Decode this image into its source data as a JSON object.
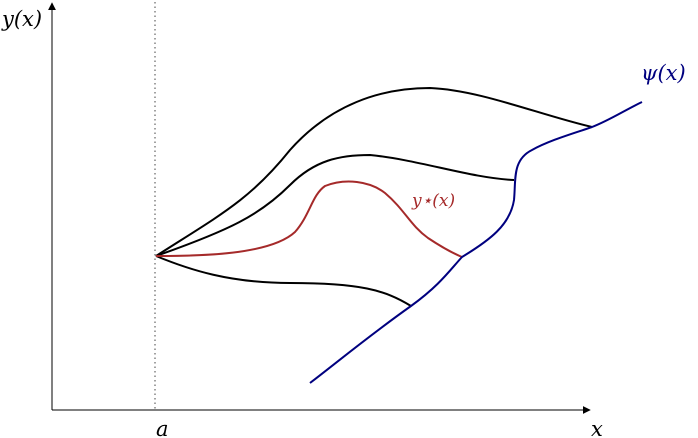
{
  "labels": {
    "y_axis": "y(x)",
    "x_axis": "x",
    "a_mark": "a",
    "psi": "ψ(x)",
    "y_star": "y⋆(x)"
  },
  "colors": {
    "axis": "#000000",
    "curves": "#000000",
    "psi": "#00007f",
    "optimal": "#a52a2a",
    "guide": "#444444"
  }
}
